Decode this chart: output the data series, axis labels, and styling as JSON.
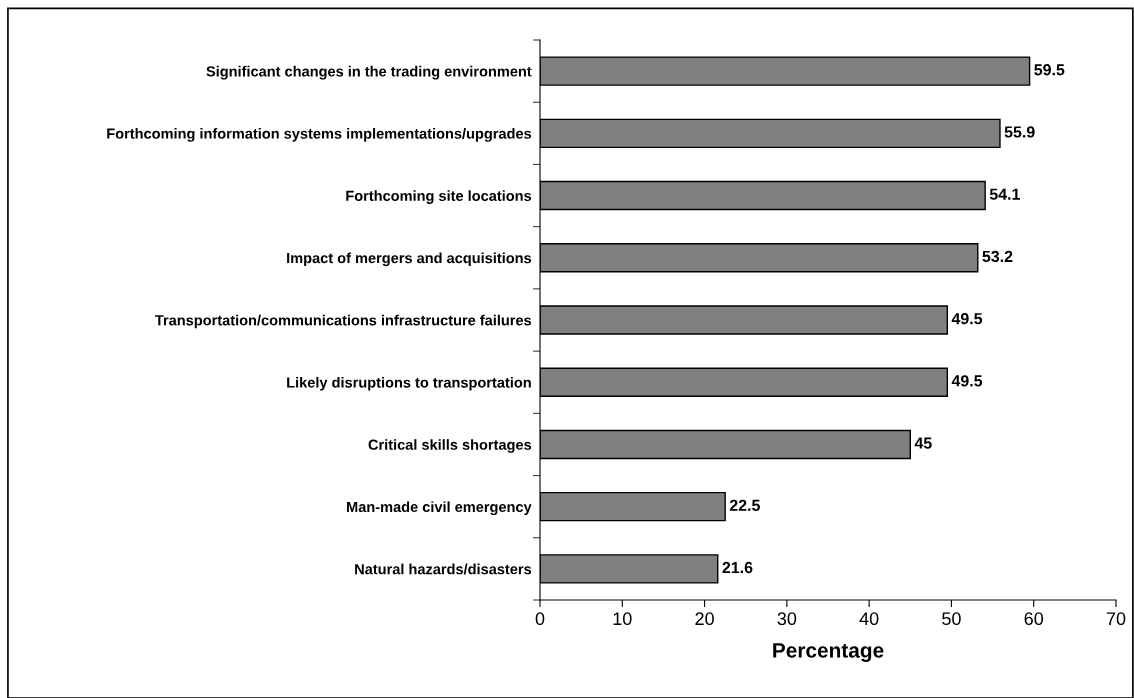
{
  "chart_data": {
    "type": "bar",
    "orientation": "horizontal",
    "xlabel": "Percentage",
    "categories": [
      "Significant changes in the trading environment",
      "Forthcoming information systems implementations/upgrades",
      "Forthcoming site locations",
      "Impact of mergers and acquisitions",
      "Transportation/communications infrastructure failures",
      "Likely disruptions to transportation",
      "Critical skills shortages",
      "Man-made civil emergency",
      "Natural hazards/disasters"
    ],
    "values": [
      59.5,
      55.9,
      54.1,
      53.2,
      49.5,
      49.5,
      45,
      22.5,
      21.6
    ],
    "color": "#808080",
    "data_labels": true,
    "xlim": [
      0,
      70
    ],
    "xticks": [
      0,
      10,
      20,
      30,
      40,
      50,
      60,
      70
    ],
    "grid": false,
    "legend": false
  }
}
